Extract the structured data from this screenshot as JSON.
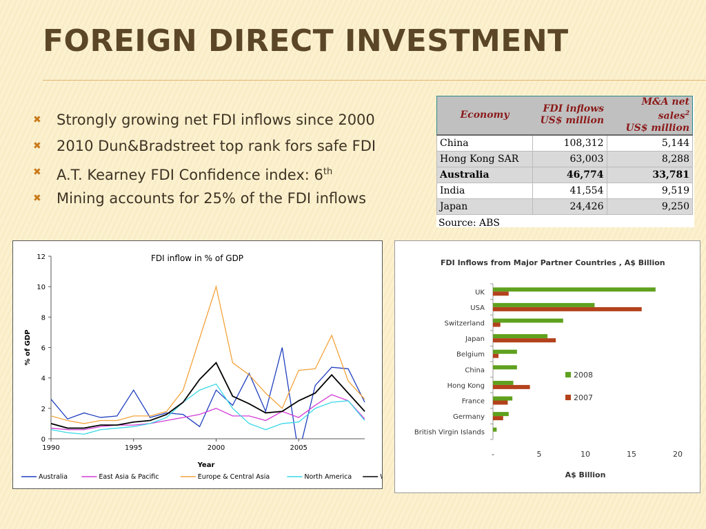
{
  "slide": {
    "title": "Foreign Direct Investment",
    "bullets": [
      {
        "text": "Strongly growing net FDI inflows since 2000",
        "sup": ""
      },
      {
        "text": "2010 Dun&Bradstreet top rank fors safe FDI",
        "sup": ""
      },
      {
        "text": "A.T. Kearney FDI Confidence index: 6",
        "sup": "th"
      },
      {
        "text": "Mining accounts for 25% of the FDI inflows",
        "sup": ""
      }
    ],
    "bullet_icon": "x-bullet-icon",
    "accent_color": "#c97a1a",
    "title_color": "#5b4628"
  },
  "table": {
    "headers": {
      "economy": "Economy",
      "fdi_l1": "FDI inflows",
      "fdi_l2": "US$ million",
      "ma_l1": "M&A net sales",
      "ma_sup": "2",
      "ma_l2": "US$ million"
    },
    "rows": [
      {
        "economy": "China",
        "fdi": "108,312",
        "ma": "5,144"
      },
      {
        "economy": "Hong Kong SAR",
        "fdi": "63,003",
        "ma": "8,288"
      },
      {
        "economy": "Australia",
        "fdi": "46,774",
        "ma": "33,781"
      },
      {
        "economy": "India",
        "fdi": "41,554",
        "ma": "9,519"
      },
      {
        "economy": "Japan",
        "fdi": "24,426",
        "ma": "9,250"
      }
    ],
    "source": "Source: ABS"
  },
  "chart_data": [
    {
      "type": "line",
      "title": "FDI inflow in % of GDP",
      "xlabel": "Year",
      "ylabel": "% of GDP",
      "xlim": [
        1990,
        2009
      ],
      "ylim": [
        0,
        12
      ],
      "xticks": [
        "1990",
        "1995",
        "2000",
        "2005"
      ],
      "yticks": [
        "0",
        "2",
        "4",
        "6",
        "8",
        "10",
        "12"
      ],
      "grid": false,
      "legend_position": "bottom",
      "x": [
        1990,
        1991,
        1992,
        1993,
        1994,
        1995,
        1996,
        1997,
        1998,
        1999,
        2000,
        2001,
        2002,
        2003,
        2004,
        2005,
        2006,
        2007,
        2008,
        2009
      ],
      "series": [
        {
          "name": "Australia",
          "color": "#1f3fbf",
          "values": [
            2.6,
            1.3,
            1.7,
            1.4,
            1.5,
            3.2,
            1.4,
            1.7,
            1.6,
            0.8,
            3.2,
            2.2,
            4.3,
            1.8,
            6.0,
            -1.0,
            3.5,
            4.7,
            4.6,
            2.4
          ]
        },
        {
          "name": "East Asia & Pacific",
          "color": "#d23bd6",
          "values": [
            0.7,
            0.6,
            0.6,
            0.8,
            0.9,
            0.9,
            1.0,
            1.2,
            1.4,
            1.6,
            2.0,
            1.5,
            1.5,
            1.2,
            1.8,
            1.4,
            2.2,
            2.9,
            2.5,
            1.3
          ]
        },
        {
          "name": "Europe & Central Asia",
          "color": "#f2a33a",
          "values": [
            1.5,
            1.2,
            1.0,
            1.2,
            1.2,
            1.5,
            1.5,
            1.8,
            3.2,
            6.6,
            10.0,
            5.0,
            4.2,
            3.0,
            2.0,
            4.5,
            4.6,
            6.8,
            3.8,
            2.6
          ]
        },
        {
          "name": "North America",
          "color": "#39d8e6",
          "values": [
            0.6,
            0.4,
            0.3,
            0.6,
            0.7,
            0.8,
            1.0,
            1.4,
            2.4,
            3.2,
            3.6,
            2.0,
            1.0,
            0.6,
            1.0,
            1.1,
            2.0,
            2.4,
            2.5,
            1.2
          ]
        },
        {
          "name": "World",
          "color": "#000000",
          "values": [
            1.0,
            0.7,
            0.7,
            0.9,
            0.9,
            1.1,
            1.2,
            1.6,
            2.4,
            3.9,
            5.0,
            2.8,
            2.3,
            1.7,
            1.8,
            2.5,
            3.0,
            4.2,
            3.0,
            1.8
          ]
        }
      ]
    },
    {
      "type": "bar",
      "orientation": "horizontal",
      "title": "FDI Inflows from Major Partner Countries , A$ Billion",
      "xlabel": "A$ Billion",
      "ylabel": "",
      "xlim": [
        0,
        20
      ],
      "xticks": [
        "-",
        "5",
        "10",
        "15",
        "20"
      ],
      "grid": false,
      "legend_position": "right",
      "categories": [
        "UK",
        "USA",
        "Switzerland",
        "Japan",
        "Belgium",
        "China",
        "Hong Kong",
        "France",
        "Germany",
        "British Virgin Islands"
      ],
      "series": [
        {
          "name": "2008",
          "color": "#5fa11e",
          "values": [
            17.6,
            11.0,
            7.6,
            5.9,
            2.6,
            2.6,
            2.2,
            2.1,
            1.7,
            0.4
          ]
        },
        {
          "name": "2007",
          "color": "#b3421c",
          "values": [
            1.7,
            16.1,
            0.8,
            6.8,
            0.6,
            0.0,
            4.0,
            1.6,
            1.1,
            0.0
          ]
        }
      ]
    }
  ]
}
